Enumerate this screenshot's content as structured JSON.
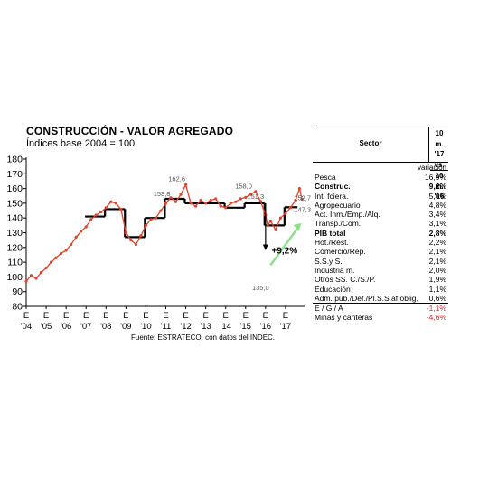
{
  "title": "CONSTRUCCIÓN - VALOR AGREGADO",
  "subtitle": "Índices base 2004 = 100",
  "source": "Fuente: ESTRATECO, con datos del INDEC.",
  "colors": {
    "series": "#e0442b",
    "step": "#000000",
    "arrow": "#8fe08c"
  },
  "chart_data": {
    "type": "line",
    "ylim": [
      80,
      180
    ],
    "yticks": [
      80,
      90,
      100,
      110,
      120,
      130,
      140,
      150,
      160,
      170,
      180
    ],
    "xtick_top": [
      "E",
      "E",
      "E",
      "E",
      "E",
      "E",
      "E",
      "E",
      "E",
      "E",
      "E",
      "E",
      "E",
      "E"
    ],
    "xtick_bottom": [
      "'04",
      "'05",
      "'06",
      "'07",
      "'08",
      "'09",
      "'10",
      "'11",
      "'12",
      "'13",
      "'14",
      "'15",
      "'16",
      "'17"
    ],
    "xlim": [
      2004.0,
      2018.0
    ],
    "series": [
      {
        "x": [
          2004.0,
          2004.25,
          2004.5,
          2004.75,
          2005.0,
          2005.25,
          2005.5,
          2005.75,
          2006.0,
          2006.25,
          2006.5,
          2006.75,
          2007.0,
          2007.25,
          2007.5,
          2007.75,
          2008.0,
          2008.25,
          2008.5,
          2008.75,
          2009.0,
          2009.25,
          2009.5,
          2009.75,
          2010.0,
          2010.25,
          2010.5,
          2010.75,
          2011.0,
          2011.25,
          2011.5,
          2011.75,
          2012.0,
          2012.25,
          2012.5,
          2012.75,
          2013.0,
          2013.25,
          2013.5,
          2013.75,
          2014.0,
          2014.25,
          2014.5,
          2014.75,
          2015.0,
          2015.25,
          2015.5,
          2015.75,
          2016.0,
          2016.1,
          2016.25,
          2016.5,
          2016.75,
          2017.0,
          2017.25,
          2017.5,
          2017.7,
          2017.83
        ],
        "y": [
          97,
          101,
          99,
          103,
          106,
          110,
          113,
          116,
          118,
          122,
          127,
          131,
          134,
          139,
          142,
          144,
          147,
          151,
          150,
          146,
          130,
          125,
          122,
          128,
          135,
          139,
          140,
          145,
          150,
          153.8,
          151,
          156,
          162.6,
          150,
          148,
          152,
          150,
          152,
          153,
          148,
          147,
          150,
          151,
          153,
          154,
          156,
          158,
          151.3,
          142,
          135,
          138,
          132,
          140,
          143,
          147,
          152,
          160,
          152.7
        ]
      }
    ],
    "steps": [
      {
        "x0": 2006.95,
        "x1": 2007.95,
        "y": 141
      },
      {
        "x0": 2007.95,
        "x1": 2008.95,
        "y": 146
      },
      {
        "x0": 2008.95,
        "x1": 2009.95,
        "y": 127
      },
      {
        "x0": 2009.95,
        "x1": 2010.95,
        "y": 140
      },
      {
        "x0": 2010.95,
        "x1": 2011.95,
        "y": 153
      },
      {
        "x0": 2011.95,
        "x1": 2012.95,
        "y": 150
      },
      {
        "x0": 2012.95,
        "x1": 2013.95,
        "y": 150
      },
      {
        "x0": 2013.95,
        "x1": 2014.95,
        "y": 147
      },
      {
        "x0": 2014.95,
        "x1": 2015.95,
        "y": 150
      },
      {
        "x0": 2015.95,
        "x1": 2016.95,
        "y": 135
      },
      {
        "x0": 2016.95,
        "x1": 2017.6,
        "y": 147.3
      }
    ],
    "annotations": [
      {
        "text": "153,8",
        "x": 2010.8,
        "y": 155
      },
      {
        "text": "162,6",
        "x": 2011.55,
        "y": 165
      },
      {
        "text": "158,0",
        "x": 2014.9,
        "y": 160
      },
      {
        "text": "151,3",
        "x": 2015.5,
        "y": 153
      },
      {
        "text": "135,0",
        "x": 2015.75,
        "y": 91
      },
      {
        "text": "152,7",
        "x": 2017.85,
        "y": 152
      },
      {
        "text": "147,3",
        "x": 2017.85,
        "y": 144
      },
      {
        "text": "+9,2%",
        "x": 2016.3,
        "y": 116
      }
    ]
  },
  "table": {
    "header_sector": "Sector",
    "header_period": [
      "10 m. '17",
      "vs.",
      "10 m. '16"
    ],
    "subheader": "variación",
    "rows": [
      {
        "label": "Pesca",
        "value": "16,9%"
      },
      {
        "label": "Construc.",
        "value": "9,2%",
        "bold": true
      },
      {
        "label": "Int. fciera.",
        "value": "5,0%"
      },
      {
        "label": "Agropecuario",
        "value": "4,8%"
      },
      {
        "label": "Act. Inm./Emp./Alq.",
        "value": "3,4%"
      },
      {
        "label": "Transp./Com.",
        "value": "3,1%"
      },
      {
        "label": "PIB total",
        "value": "2,8%",
        "bold": true
      },
      {
        "label": "Hot./Rest.",
        "value": "2,2%"
      },
      {
        "label": "Comercio/Rep.",
        "value": "2,1%"
      },
      {
        "label": "S.S.y S.",
        "value": "2,1%"
      },
      {
        "label": "Industria m.",
        "value": "2,0%"
      },
      {
        "label": "Otros SS. C./S./P.",
        "value": "1,9%"
      },
      {
        "label": "Educación",
        "value": "1,1%"
      },
      {
        "label": "Adm. púb./Def./Pl.S.S.af.oblig.",
        "value": "0,6%"
      },
      {
        "label": "E / G / A",
        "value": "-1,1%",
        "neg": true
      },
      {
        "label": "Minas y canteras",
        "value": "-4,6%",
        "neg": true
      }
    ]
  }
}
